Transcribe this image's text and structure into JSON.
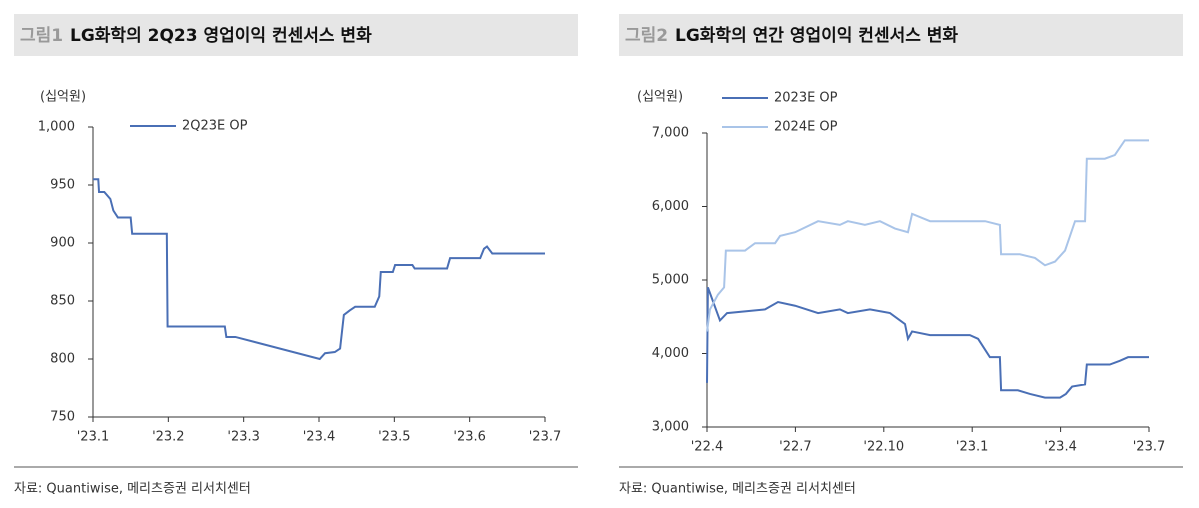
{
  "chart_data": [
    {
      "type": "line",
      "figure_label": "그림1",
      "title": "LG화학의 2Q23 영업이익 컨센서스 변화",
      "unit_label": "(십억원)",
      "source": "자료: Quantiwise, 메리츠증권 리서치센터",
      "xlim": [
        1,
        7
      ],
      "xticks": [
        {
          "value": 1,
          "label": "'23.1"
        },
        {
          "value": 2,
          "label": "'23.2"
        },
        {
          "value": 3,
          "label": "'23.3"
        },
        {
          "value": 4,
          "label": "'23.4"
        },
        {
          "value": 5,
          "label": "'23.5"
        },
        {
          "value": 6,
          "label": "'23.6"
        },
        {
          "value": 7,
          "label": "'23.7"
        }
      ],
      "ylim": [
        750,
        1000
      ],
      "yticks": [
        750,
        800,
        850,
        900,
        950,
        {
          "value": 1000,
          "label": "1,000"
        }
      ],
      "legend": "top-left",
      "series": [
        {
          "name": "2Q23E OP",
          "color": "#4a6fb5",
          "x": [
            1.0,
            1.07,
            1.08,
            1.15,
            1.23,
            1.27,
            1.33,
            1.5,
            1.52,
            1.98,
            1.99,
            2.75,
            2.77,
            2.89,
            4.01,
            4.08,
            4.21,
            4.28,
            4.33,
            4.41,
            4.48,
            4.74,
            4.8,
            4.82,
            4.98,
            5.01,
            5.24,
            5.27,
            5.7,
            5.74,
            6.14,
            6.19,
            6.23,
            6.3,
            7.0
          ],
          "values": [
            955,
            955,
            944,
            944,
            938,
            928,
            922,
            922,
            908,
            908,
            828,
            828,
            819,
            819,
            800,
            805,
            806,
            809,
            838,
            842,
            845,
            845,
            854,
            875,
            875,
            881,
            881,
            878,
            878,
            887,
            887,
            895,
            897,
            891,
            891
          ]
        }
      ]
    },
    {
      "type": "line",
      "figure_label": "그림2",
      "title": "LG화학의 연간 영업이익 컨센서스 변화",
      "unit_label": "(십억원)",
      "source": "자료: Quantiwise, 메리츠증권 리서치센터",
      "xlim": [
        4,
        19
      ],
      "xticks": [
        {
          "value": 4,
          "label": "'22.4"
        },
        {
          "value": 7,
          "label": "'22.7"
        },
        {
          "value": 10,
          "label": "'22.10"
        },
        {
          "value": 13,
          "label": "'23.1"
        },
        {
          "value": 16,
          "label": "'23.4"
        },
        {
          "value": 19,
          "label": "'23.7"
        }
      ],
      "ylim": [
        3000,
        7000
      ],
      "yticks": [
        {
          "value": 3000,
          "label": "3,000"
        },
        {
          "value": 4000,
          "label": "4,000"
        },
        {
          "value": 5000,
          "label": "5,000"
        },
        {
          "value": 6000,
          "label": "6,000"
        },
        {
          "value": 7000,
          "label": "7,000"
        }
      ],
      "legend": "top-left",
      "series": [
        {
          "name": "2023E OP",
          "color": "#4a6fb5",
          "x": [
            4.0,
            4.03,
            4.44,
            4.68,
            5.97,
            6.41,
            6.99,
            7.77,
            8.51,
            8.78,
            9.53,
            10.21,
            10.72,
            10.82,
            10.96,
            11.57,
            12.92,
            13.2,
            13.44,
            13.6,
            13.94,
            13.98,
            14.55,
            14.96,
            15.47,
            15.98,
            16.18,
            16.39,
            16.83,
            16.89,
            17.67,
            18.01,
            18.29,
            19.0
          ],
          "values": [
            3600,
            4900,
            4450,
            4550,
            4600,
            4700,
            4650,
            4550,
            4600,
            4550,
            4600,
            4550,
            4400,
            4200,
            4300,
            4250,
            4250,
            4200,
            4050,
            3950,
            3950,
            3500,
            3500,
            3450,
            3400,
            3400,
            3450,
            3550,
            3580,
            3850,
            3850,
            3900,
            3950,
            3950
          ]
        },
        {
          "name": "2024E OP",
          "color": "#a9c4e8",
          "x": [
            4.0,
            4.1,
            4.37,
            4.58,
            4.64,
            5.29,
            5.63,
            6.31,
            6.48,
            6.99,
            7.77,
            8.51,
            8.78,
            9.36,
            9.87,
            10.38,
            10.82,
            10.96,
            11.57,
            13.44,
            13.94,
            13.98,
            14.62,
            15.13,
            15.47,
            15.81,
            16.15,
            16.49,
            16.83,
            16.89,
            17.5,
            17.84,
            18.18,
            19.0
          ],
          "values": [
            4300,
            4600,
            4800,
            4900,
            5400,
            5400,
            5500,
            5500,
            5600,
            5650,
            5800,
            5750,
            5800,
            5750,
            5800,
            5700,
            5650,
            5900,
            5800,
            5800,
            5750,
            5350,
            5350,
            5300,
            5200,
            5250,
            5400,
            5800,
            5800,
            6650,
            6650,
            6700,
            6900,
            6900
          ]
        }
      ]
    }
  ]
}
